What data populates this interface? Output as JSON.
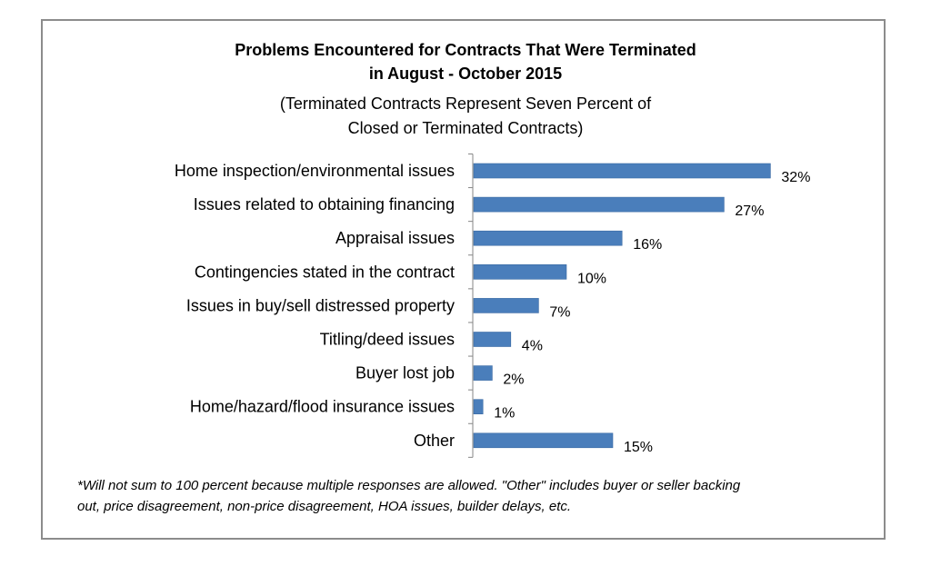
{
  "chart_data": {
    "type": "bar",
    "orientation": "horizontal",
    "title": "Problems Encountered for Contracts That Were Terminated",
    "title_line2": "in August - October 2015",
    "subtitle": "(Terminated Contracts Represent Seven Percent of",
    "subtitle_line2": "Closed or Terminated Contracts)",
    "categories": [
      "Home inspection/environmental issues",
      "Issues related to obtaining financing",
      "Appraisal issues",
      "Contingencies stated in the contract",
      "Issues in buy/sell distressed property",
      "Titling/deed issues",
      "Buyer lost job",
      "Home/hazard/flood insurance issues",
      "Other"
    ],
    "values": [
      32,
      27,
      16,
      10,
      7,
      4,
      2,
      1,
      15
    ],
    "value_labels": [
      "32%",
      "27%",
      "16%",
      "10%",
      "7%",
      "4%",
      "2%",
      "1%",
      "15%"
    ],
    "unit": "%",
    "xlim": [
      0,
      35
    ],
    "bar_color": "#4a7ebb",
    "grid": false,
    "legend": "none",
    "footnote": "*Will not sum to 100 percent because multiple responses are allowed. \"Other\" includes buyer or seller backing",
    "footnote_line2": "out, price disagreement, non-price disagreement, HOA issues, builder delays, etc."
  }
}
